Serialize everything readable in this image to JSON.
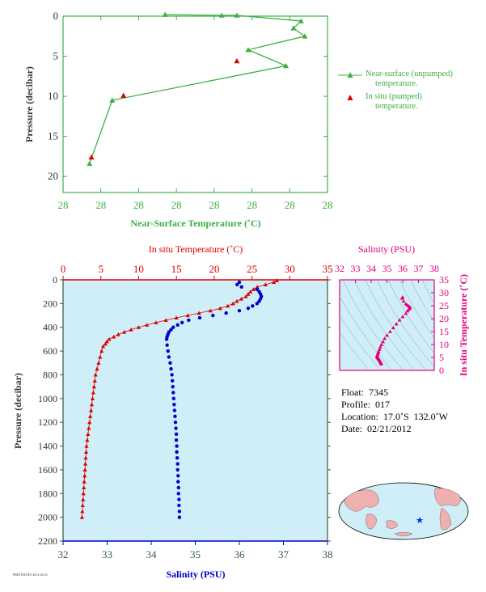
{
  "chart_data": [
    {
      "type": "line",
      "xlabel": "Near-Surface Temperature (˚C)",
      "ylabel": "Pressure (decibar)",
      "x_tick_labels": [
        "28",
        "28",
        "28",
        "28",
        "28",
        "28",
        "28",
        "28"
      ],
      "y_ticks": [
        0,
        5,
        10,
        15,
        20
      ],
      "xlim": [
        0,
        7
      ],
      "ylim": [
        0,
        22
      ],
      "y_inverted": true,
      "color": "#3cb043",
      "series": [
        {
          "name": "Near-surface (unpumped) temperature.",
          "marker": "triangle",
          "x": [
            2.7,
            4.2,
            4.6,
            6.3,
            6.1,
            6.4,
            4.9,
            5.9,
            1.3,
            0.7
          ],
          "y": [
            -0.2,
            -0.1,
            -0.1,
            0.6,
            1.5,
            2.5,
            4.2,
            6.2,
            10.5,
            18.4
          ]
        },
        {
          "name": "In situ (pumped) temperature.",
          "marker": "triangle",
          "color": "#dd0000",
          "x": [
            4.6,
            1.6,
            0.75
          ],
          "y": [
            5.6,
            9.9,
            17.6
          ]
        }
      ]
    },
    {
      "type": "line",
      "top_axis_label": "In situ Temperature (˚C)",
      "bottom_axis_label": "Salinity (PSU)",
      "ylabel": "Pressure (decibar)",
      "temp_ticks": [
        0,
        5,
        10,
        15,
        20,
        25,
        30,
        35
      ],
      "sal_ticks": [
        32,
        33,
        34,
        35,
        36,
        37,
        38
      ],
      "y_ticks": [
        0,
        200,
        400,
        600,
        800,
        1000,
        1200,
        1400,
        1600,
        1800,
        2000,
        2200
      ],
      "temp_lim": [
        0,
        35
      ],
      "sal_lim": [
        32,
        38
      ],
      "ylim": [
        0,
        2200
      ],
      "background": "#cfeef8",
      "temperature": {
        "color": "#dd0000",
        "pressure": [
          5,
          20,
          40,
          60,
          80,
          100,
          120,
          140,
          160,
          180,
          200,
          220,
          240,
          260,
          280,
          300,
          320,
          340,
          360,
          380,
          400,
          420,
          440,
          460,
          480,
          500,
          520,
          540,
          560,
          600,
          650,
          700,
          750,
          800,
          850,
          900,
          950,
          1000,
          1050,
          1100,
          1150,
          1200,
          1250,
          1300,
          1350,
          1400,
          1450,
          1500,
          1550,
          1600,
          1650,
          1700,
          1750,
          1800,
          1850,
          1900,
          1950,
          2000
        ],
        "temp": [
          28.3,
          27.9,
          26.8,
          25.7,
          25.2,
          24.8,
          24.5,
          24.2,
          23.6,
          23.0,
          22.5,
          21.8,
          20.8,
          19.5,
          18.0,
          16.5,
          15.0,
          13.6,
          12.3,
          11.1,
          10.0,
          9.0,
          8.1,
          7.3,
          6.7,
          6.1,
          5.8,
          5.6,
          5.3,
          5.1,
          4.9,
          4.7,
          4.5,
          4.3,
          4.2,
          4.1,
          4.0,
          3.9,
          3.8,
          3.7,
          3.6,
          3.5,
          3.4,
          3.3,
          3.2,
          3.1,
          3.05,
          3.0,
          2.95,
          2.9,
          2.85,
          2.8,
          2.75,
          2.7,
          2.65,
          2.6,
          2.55,
          2.5
        ]
      },
      "salinity": {
        "color": "#0000cc",
        "pressure": [
          20,
          40,
          60,
          80,
          100,
          120,
          140,
          160,
          180,
          200,
          220,
          240,
          260,
          280,
          300,
          320,
          340,
          360,
          380,
          400,
          420,
          440,
          460,
          480,
          500,
          550,
          600,
          650,
          700,
          750,
          800,
          850,
          900,
          950,
          1000,
          1050,
          1100,
          1150,
          1200,
          1250,
          1300,
          1350,
          1400,
          1450,
          1500,
          1550,
          1600,
          1650,
          1700,
          1750,
          1800,
          1850,
          1900,
          1950,
          2000
        ],
        "sal": [
          36.0,
          35.95,
          36.05,
          36.4,
          36.45,
          36.48,
          36.5,
          36.48,
          36.45,
          36.4,
          36.3,
          36.2,
          36.0,
          35.7,
          35.4,
          35.1,
          34.85,
          34.7,
          34.6,
          34.5,
          34.45,
          34.4,
          34.38,
          34.36,
          34.35,
          34.36,
          34.38,
          34.4,
          34.43,
          34.45,
          34.47,
          34.48,
          34.49,
          34.5,
          34.51,
          34.52,
          34.53,
          34.54,
          34.55,
          34.56,
          34.57,
          34.57,
          34.58,
          34.58,
          34.59,
          34.6,
          34.6,
          34.61,
          34.61,
          34.62,
          34.62,
          34.63,
          34.63,
          34.64,
          34.64
        ]
      }
    },
    {
      "type": "scatter",
      "xlabel": "Salinity (PSU)",
      "ylabel": "In situ Temperature (˚C)",
      "x_ticks": [
        32,
        33,
        34,
        35,
        36,
        37,
        38
      ],
      "y_ticks": [
        0,
        5,
        10,
        15,
        20,
        25,
        30,
        35
      ],
      "xlim": [
        32,
        38
      ],
      "ylim": [
        0,
        35
      ],
      "color": "#e0007a",
      "points": {
        "sal": [
          36.0,
          35.95,
          36.05,
          36.2,
          36.3,
          36.4,
          36.45,
          36.48,
          36.4,
          36.3,
          36.2,
          36.0,
          35.8,
          35.6,
          35.4,
          35.2,
          35.0,
          34.85,
          34.75,
          34.65,
          34.58,
          34.52,
          34.47,
          34.43,
          34.4,
          34.38,
          34.37,
          34.38,
          34.4,
          34.42,
          34.45,
          34.47,
          34.5,
          34.52,
          34.55,
          34.58,
          34.6,
          34.62,
          34.64
        ],
        "temp": [
          28.3,
          27.9,
          26.8,
          25.7,
          25.2,
          24.8,
          24.5,
          24.2,
          23.6,
          23.0,
          22.0,
          20.8,
          19.5,
          18.0,
          16.5,
          15.0,
          13.6,
          12.3,
          11.1,
          10.0,
          9.0,
          8.1,
          7.3,
          6.7,
          6.1,
          5.8,
          5.6,
          5.3,
          5.1,
          4.9,
          4.7,
          4.5,
          4.2,
          4.0,
          3.8,
          3.5,
          3.2,
          2.9,
          2.5
        ]
      }
    }
  ],
  "info": {
    "float": "Float:  7345",
    "profile": "Profile:  017",
    "location": "Location:  17.0˚S  132.0˚W",
    "date": "Date:  02/21/2012"
  },
  "legend": {
    "unpumped_line1": "Near-surface (unpumped)",
    "unpumped_line2": "temperature.",
    "pumped_line1": "In situ (pumped)",
    "pumped_line2": "temperature."
  },
  "map": {
    "marker_icon": "star-icon",
    "ocean_color": "#cfeef8",
    "land_color": "#f0b0b0"
  },
  "footer_tiny": "PRINTED BY 2012-02-21"
}
